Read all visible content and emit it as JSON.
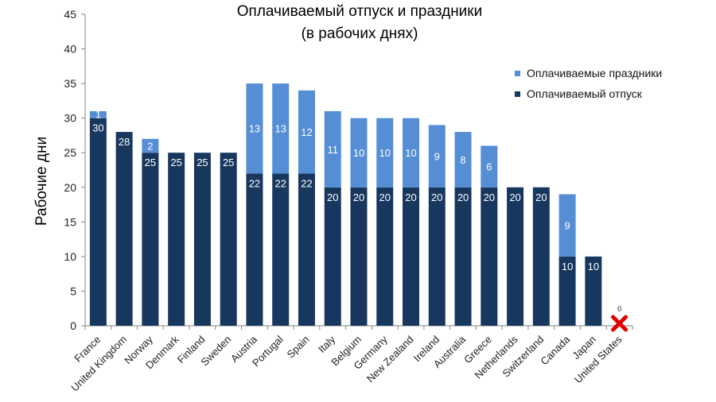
{
  "chart_data": {
    "type": "bar",
    "stacked": true,
    "title": [
      "Оплачиваемый отпуск и праздники",
      "(в рабочих днях)"
    ],
    "xlabel": "",
    "ylabel": "Рабочие дни",
    "ylim": [
      0,
      45
    ],
    "yticks": [
      0,
      5,
      10,
      15,
      20,
      25,
      30,
      35,
      40,
      45
    ],
    "grid": false,
    "legend_position": "top-right",
    "categories": [
      "France",
      "United Kingdom",
      "Norway",
      "Denmark",
      "Finland",
      "Sweden",
      "Austria",
      "Portugal",
      "Spain",
      "Italy",
      "Belgium",
      "Germany",
      "New Zealand",
      "Ireland",
      "Australia",
      "Greece",
      "Netherlands",
      "Switzerland",
      "Canada",
      "Japan",
      "United States"
    ],
    "series": [
      {
        "name": "Оплачиваемый отпуск",
        "color": "#17375e",
        "values": [
          30,
          28,
          25,
          25,
          25,
          25,
          22,
          22,
          22,
          20,
          20,
          20,
          20,
          20,
          20,
          20,
          20,
          20,
          10,
          10,
          0
        ]
      },
      {
        "name": "Оплачиваемые праздники",
        "color": "#558ed5",
        "values": [
          1,
          0,
          2,
          0,
          0,
          0,
          13,
          13,
          12,
          11,
          10,
          10,
          10,
          9,
          8,
          6,
          0,
          0,
          9,
          0,
          0
        ]
      }
    ],
    "annotations": [
      {
        "category": "United States",
        "text": "0",
        "marker": "red-x",
        "marker_color": "#e00000"
      }
    ]
  }
}
